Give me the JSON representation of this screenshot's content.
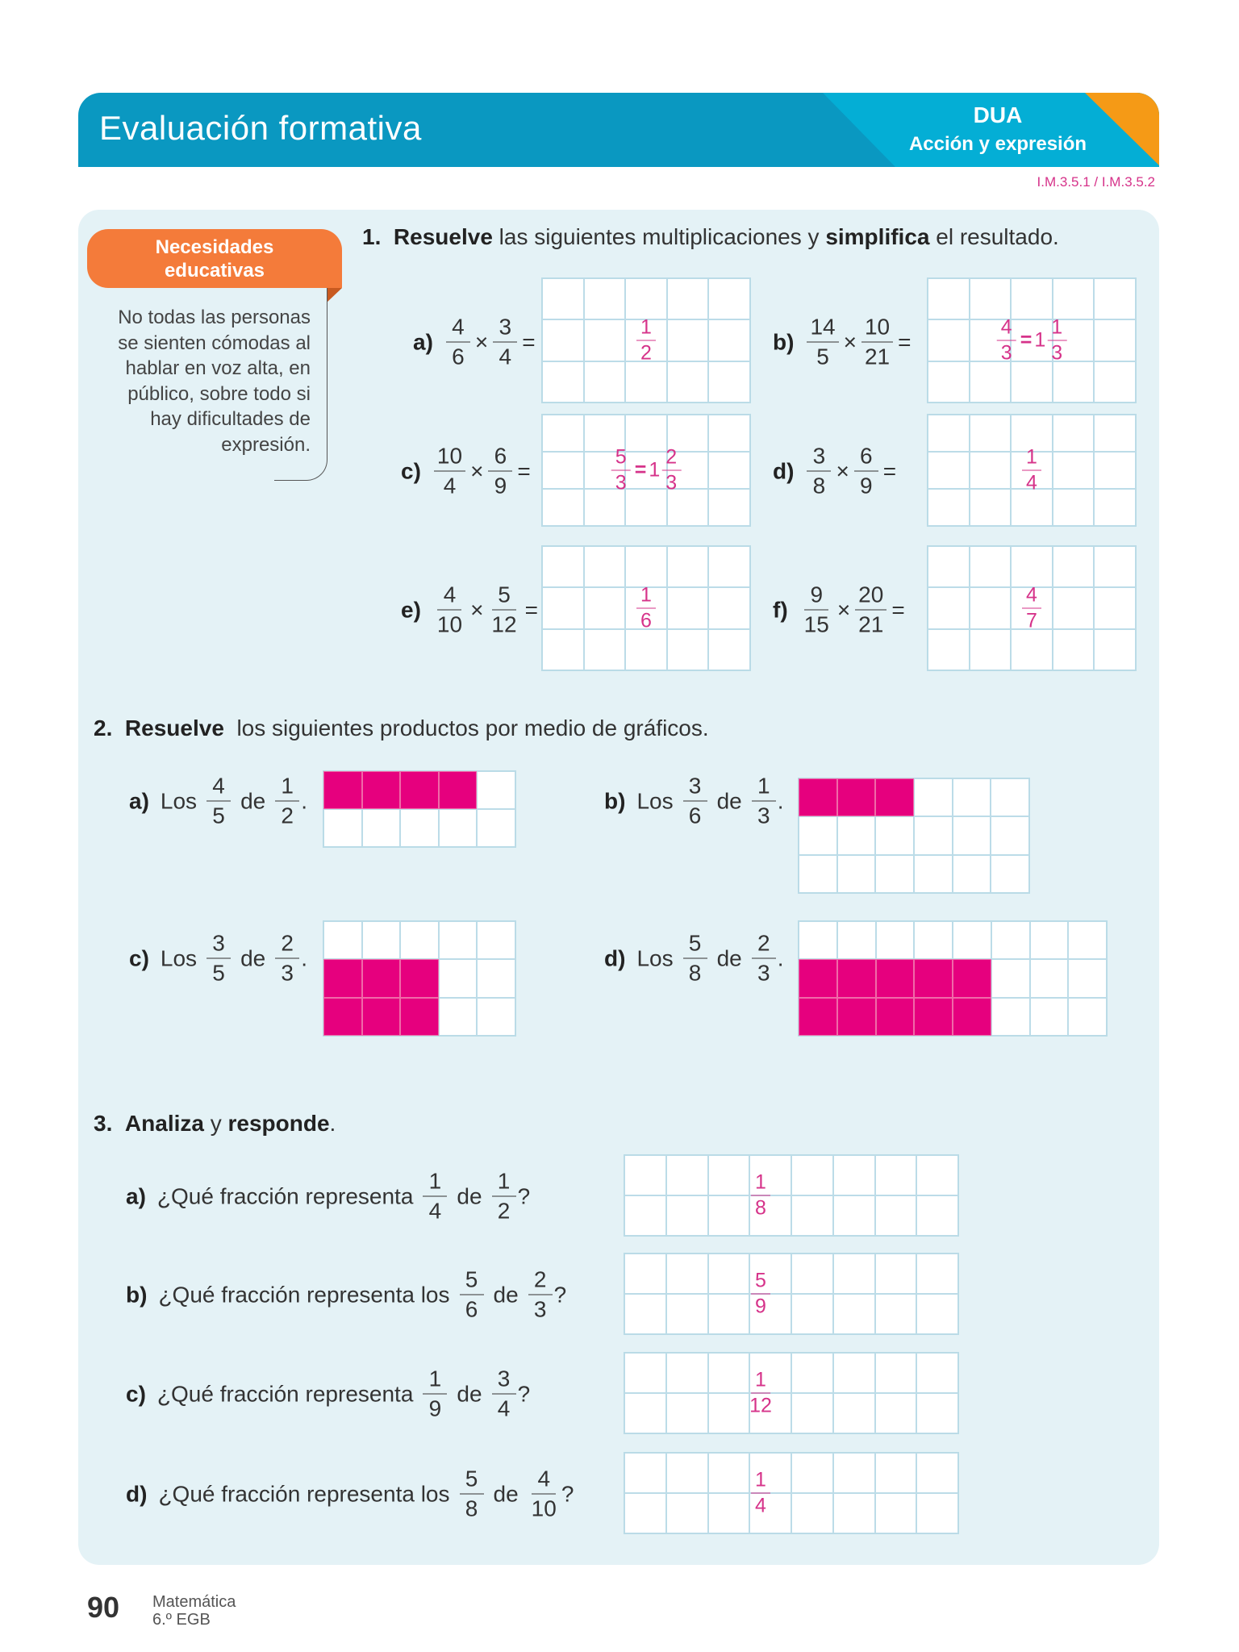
{
  "header": {
    "title": "Evaluación formativa",
    "dua": "DUA",
    "dua_sub": "Acción y expresión",
    "code": "I.M.3.5.1 / I.M.3.5.2"
  },
  "sidebar": {
    "title_line1": "Necesidades",
    "title_line2": "educativas",
    "text": "No todas las personas se sienten cómodas al hablar en voz alta, en público, sobre todo si hay dificultades de expresión."
  },
  "colors": {
    "header": "#0a98c1",
    "accent_light": "#04aed5",
    "orange": "#f47b3a",
    "corner": "#f59a16",
    "answer": "#d6338a",
    "fill": "#e6007e",
    "panel": "#e4f2f6"
  },
  "q1": {
    "number": "1.",
    "bold1": "Resuelve",
    "text1": " las siguientes multiplicaciones y ",
    "bold2": "simplifica",
    "text2": " el resultado.",
    "times": "×",
    "equals": "=",
    "items": [
      {
        "label": "a)",
        "f1": {
          "n": "4",
          "d": "6"
        },
        "f2": {
          "n": "3",
          "d": "4"
        },
        "answer": {
          "n": "1",
          "d": "2"
        }
      },
      {
        "label": "b)",
        "f1": {
          "n": "14",
          "d": "5"
        },
        "f2": {
          "n": "10",
          "d": "21"
        },
        "answer": {
          "n": "4",
          "d": "3",
          "whole": "1",
          "mn": "1",
          "md": "3"
        }
      },
      {
        "label": "c)",
        "f1": {
          "n": "10",
          "d": "4"
        },
        "f2": {
          "n": "6",
          "d": "9"
        },
        "answer": {
          "n": "5",
          "d": "3",
          "whole": "1",
          "mn": "2",
          "md": "3"
        }
      },
      {
        "label": "d)",
        "f1": {
          "n": "3",
          "d": "8"
        },
        "f2": {
          "n": "6",
          "d": "9"
        },
        "answer": {
          "n": "1",
          "d": "4"
        }
      },
      {
        "label": "e)",
        "f1": {
          "n": "4",
          "d": "10"
        },
        "f2": {
          "n": "5",
          "d": "12"
        },
        "answer": {
          "n": "1",
          "d": "6"
        }
      },
      {
        "label": "f)",
        "f1": {
          "n": "9",
          "d": "15"
        },
        "f2": {
          "n": "20",
          "d": "21"
        },
        "answer": {
          "n": "4",
          "d": "7"
        }
      }
    ]
  },
  "q2": {
    "number": "2.",
    "bold1": "Resuelve",
    "text1": "  los siguientes productos por medio de gráficos.",
    "los": "Los",
    "de": "de",
    "period": ".",
    "items": [
      {
        "label": "a)",
        "f1": {
          "n": "4",
          "d": "5"
        },
        "f2": {
          "n": "1",
          "d": "2"
        },
        "grid": {
          "cols": 5,
          "rows": 2,
          "shaded_cols": 4,
          "shaded_rows": 1,
          "shaded_from_row": 1
        }
      },
      {
        "label": "b)",
        "f1": {
          "n": "3",
          "d": "6"
        },
        "f2": {
          "n": "1",
          "d": "3"
        },
        "grid": {
          "cols": 6,
          "rows": 3,
          "shaded_cols": 3,
          "shaded_rows": 1,
          "shaded_from_row": 1
        }
      },
      {
        "label": "c)",
        "f1": {
          "n": "3",
          "d": "5"
        },
        "f2": {
          "n": "2",
          "d": "3"
        },
        "grid": {
          "cols": 5,
          "rows": 3,
          "shaded_cols": 3,
          "shaded_rows": 2,
          "shaded_from_row": 2
        }
      },
      {
        "label": "d)",
        "f1": {
          "n": "5",
          "d": "8"
        },
        "f2": {
          "n": "2",
          "d": "3"
        },
        "grid": {
          "cols": 8,
          "rows": 3,
          "shaded_cols": 5,
          "shaded_rows": 2,
          "shaded_from_row": 2
        }
      }
    ]
  },
  "q3": {
    "number": "3.",
    "bold1": "Analiza",
    "text1": " y ",
    "bold2": "responde",
    "text2": ".",
    "de": "de",
    "qmark": "?",
    "items": [
      {
        "label": "a)",
        "question": "¿Qué fracción representa",
        "f1": {
          "n": "1",
          "d": "4"
        },
        "f2": {
          "n": "1",
          "d": "2"
        },
        "answer": {
          "n": "1",
          "d": "8"
        }
      },
      {
        "label": "b)",
        "question": "¿Qué fracción representa los",
        "f1": {
          "n": "5",
          "d": "6"
        },
        "f2": {
          "n": "2",
          "d": "3"
        },
        "answer": {
          "n": "5",
          "d": "9"
        }
      },
      {
        "label": "c)",
        "question": "¿Qué fracción representa",
        "f1": {
          "n": "1",
          "d": "9"
        },
        "f2": {
          "n": "3",
          "d": "4"
        },
        "answer": {
          "n": "1",
          "d": "12"
        }
      },
      {
        "label": "d)",
        "question": "¿Qué fracción representa los",
        "f1": {
          "n": "5",
          "d": "8"
        },
        "f2": {
          "n": "4",
          "d": "10"
        },
        "answer": {
          "n": "1",
          "d": "4"
        }
      }
    ]
  },
  "footer": {
    "page": "90",
    "subject": "Matemática",
    "grade": "6.º EGB"
  }
}
